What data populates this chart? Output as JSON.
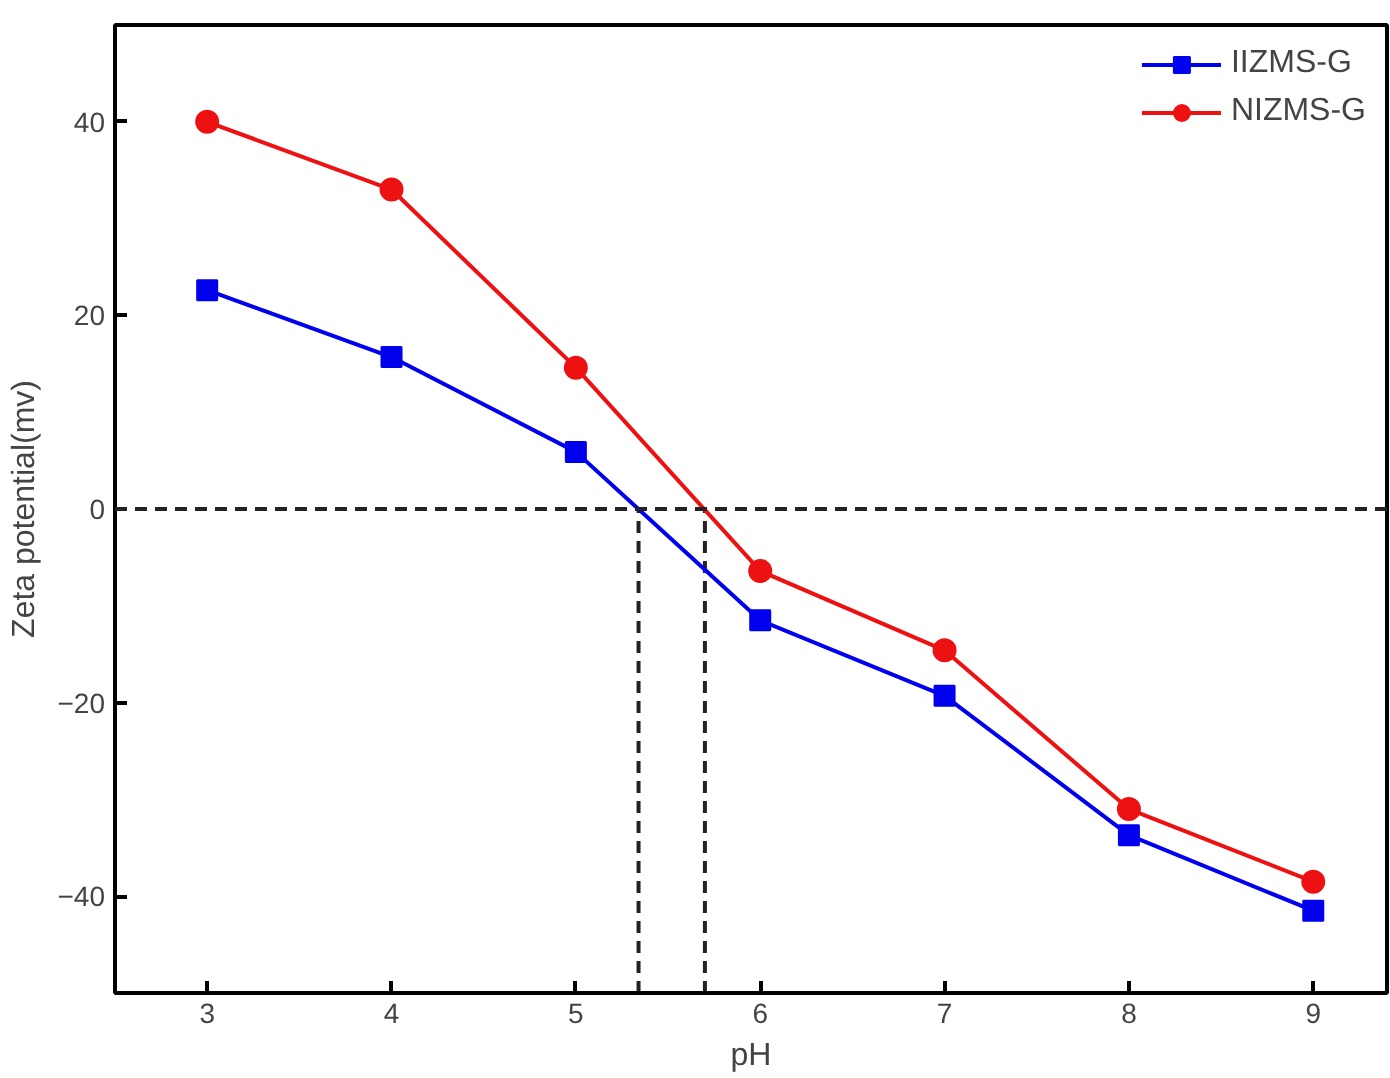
{
  "chart_data": {
    "type": "line",
    "xlabel": "pH",
    "ylabel": "Zeta potential(mv)",
    "x": [
      3,
      4,
      5,
      6,
      7,
      8,
      9
    ],
    "series": [
      {
        "name": "IIZMS-G",
        "color": "#0000ee",
        "marker": "square",
        "values": [
          22.6,
          15.7,
          5.9,
          -11.5,
          -19.3,
          -33.7,
          -41.5
        ]
      },
      {
        "name": "NIZMS-G",
        "color": "#ee1111",
        "marker": "circle",
        "values": [
          40,
          33,
          14.6,
          -6.4,
          -14.6,
          -31,
          -38.5
        ]
      }
    ],
    "xlim": [
      2.5,
      9.4
    ],
    "ylim": [
      -50,
      50
    ],
    "xticks": [
      3,
      4,
      5,
      6,
      7,
      8,
      9
    ],
    "yticks": [
      -40,
      -20,
      0,
      20,
      40
    ],
    "ref_lines": [
      {
        "axis": "y",
        "value": 0,
        "color": "#222222",
        "line_style": "dashed"
      },
      {
        "axis": "x",
        "value": 5.34,
        "color": "#222222",
        "line_style": "dashed"
      },
      {
        "axis": "x",
        "value": 5.7,
        "color": "#222222",
        "line_style": "dashed"
      }
    ],
    "grid": false,
    "legend": "top right",
    "line_style": "solid"
  }
}
